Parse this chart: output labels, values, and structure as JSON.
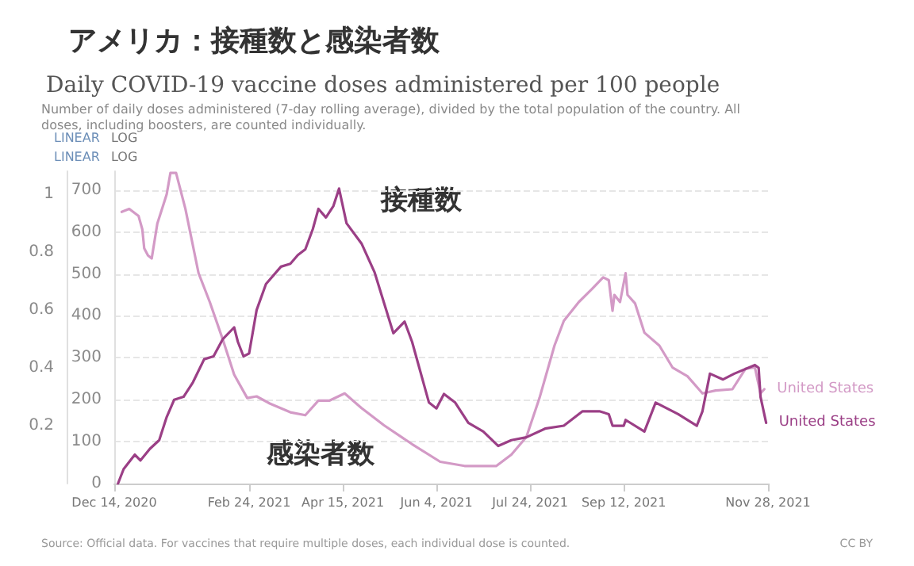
{
  "chart_data": {
    "type": "line",
    "title": "アメリカ：接種数と感染者数",
    "subtitle": "Daily COVID-19 vaccine doses administered per 100 people",
    "annotations": [
      "Number of daily doses administered (7-day rolling average), divided by the total population of the country. All doses, including boosters, are counted individually.",
      "LINEAR",
      "LOG",
      "LINEAR",
      "LOG",
      "Source: Official data. For vaccines that require multiple doses, each individual dose is counted.",
      "CC BY",
      "接種数",
      "感染者数"
    ],
    "series": [
      {
        "name": "United States",
        "color": "#d39ac6",
        "x": [
          "2020-12-18",
          "2020-12-22",
          "2020-12-27",
          "2020-12-29",
          "2020-12-30",
          "2021-01-01",
          "2021-01-03",
          "2021-01-06",
          "2021-01-11",
          "2021-01-13",
          "2021-01-16",
          "2021-01-21",
          "2021-01-28",
          "2021-02-03",
          "2021-02-10",
          "2021-02-16",
          "2021-02-23",
          "2021-02-28",
          "2021-03-07",
          "2021-03-18",
          "2021-03-26",
          "2021-04-02",
          "2021-04-08",
          "2021-04-16",
          "2021-04-25",
          "2021-05-07",
          "2021-05-22",
          "2021-06-06",
          "2021-06-19",
          "2021-07-06",
          "2021-07-14",
          "2021-07-22",
          "2021-07-29",
          "2021-08-06",
          "2021-08-11",
          "2021-08-19",
          "2021-08-26",
          "2021-09-01",
          "2021-09-04",
          "2021-09-06",
          "2021-09-07",
          "2021-09-10",
          "2021-09-13",
          "2021-09-14",
          "2021-09-18",
          "2021-09-23",
          "2021-10-01",
          "2021-10-08",
          "2021-10-16",
          "2021-10-24",
          "2021-10-31",
          "2021-11-09",
          "2021-11-16",
          "2021-11-21",
          "2021-11-24",
          "2021-11-26"
        ],
        "values": [
          648,
          655,
          638,
          606,
          561,
          544,
          537,
          620,
          690,
          741,
          741,
          655,
          502,
          433,
          343,
          260,
          204,
          208,
          191,
          170,
          163,
          198,
          198,
          215,
          180,
          139,
          94,
          52,
          42,
          42,
          69,
          111,
          204,
          329,
          388,
          433,
          464,
          492,
          485,
          412,
          450,
          433,
          502,
          450,
          430,
          360,
          329,
          277,
          256,
          215,
          222,
          225,
          274,
          277,
          215,
          225
        ]
      },
      {
        "name": "United States",
        "color": "#9b3f86",
        "axis": "y2",
        "x": [
          "2020-12-16",
          "2020-12-19",
          "2020-12-25",
          "2020-12-28",
          "2021-01-02",
          "2021-01-07",
          "2021-01-11",
          "2021-01-15",
          "2021-01-20",
          "2021-01-25",
          "2021-01-31",
          "2021-02-05",
          "2021-02-10",
          "2021-02-16",
          "2021-02-18",
          "2021-02-21",
          "2021-02-24",
          "2021-02-28",
          "2021-03-05",
          "2021-03-13",
          "2021-03-18",
          "2021-03-22",
          "2021-03-26",
          "2021-03-30",
          "2021-04-02",
          "2021-04-06",
          "2021-04-10",
          "2021-04-13",
          "2021-04-17",
          "2021-04-25",
          "2021-05-02",
          "2021-05-12",
          "2021-05-18",
          "2021-05-22",
          "2021-05-31",
          "2021-06-04",
          "2021-06-08",
          "2021-06-14",
          "2021-06-21",
          "2021-06-29",
          "2021-07-07",
          "2021-07-14",
          "2021-07-22",
          "2021-08-01",
          "2021-08-11",
          "2021-08-21",
          "2021-08-30",
          "2021-09-04",
          "2021-09-06",
          "2021-09-12",
          "2021-09-13",
          "2021-09-23",
          "2021-09-29",
          "2021-10-11",
          "2021-10-21",
          "2021-10-24",
          "2021-10-28",
          "2021-11-04",
          "2021-11-10",
          "2021-11-21",
          "2021-11-23",
          "2021-11-24",
          "2021-11-27"
        ],
        "values": [
          0,
          0.05,
          0.1,
          0.08,
          0.12,
          0.15,
          0.23,
          0.29,
          0.3,
          0.35,
          0.43,
          0.44,
          0.5,
          0.54,
          0.49,
          0.44,
          0.45,
          0.6,
          0.69,
          0.75,
          0.76,
          0.79,
          0.81,
          0.88,
          0.95,
          0.92,
          0.96,
          1.02,
          0.9,
          0.83,
          0.73,
          0.52,
          0.56,
          0.49,
          0.28,
          0.26,
          0.31,
          0.28,
          0.21,
          0.18,
          0.13,
          0.15,
          0.16,
          0.19,
          0.2,
          0.25,
          0.25,
          0.24,
          0.2,
          0.2,
          0.22,
          0.18,
          0.28,
          0.24,
          0.2,
          0.25,
          0.38,
          0.36,
          0.38,
          0.41,
          0.4,
          0.3,
          0.21
        ]
      }
    ],
    "xlim": [
      "2020-12-14",
      "2021-11-28"
    ],
    "xticks": [
      {
        "value": "2020-12-14",
        "label": "Dec 14, 2020"
      },
      {
        "value": "2021-02-24",
        "label": "Feb 24, 2021"
      },
      {
        "value": "2021-04-15",
        "label": "Apr 15, 2021"
      },
      {
        "value": "2021-06-04",
        "label": "Jun 4, 2021"
      },
      {
        "value": "2021-07-24",
        "label": "Jul 24, 2021"
      },
      {
        "value": "2021-09-12",
        "label": "Sep 12, 2021"
      },
      {
        "value": "2021-11-28",
        "label": "Nov 28, 2021"
      }
    ],
    "ylim": [
      0,
      745
    ],
    "yticks": [
      0,
      100,
      200,
      300,
      400,
      500,
      600,
      700
    ],
    "y2lim": [
      0,
      1.08
    ],
    "y2ticks": [
      0.2,
      0.4,
      0.6,
      0.8,
      1
    ],
    "grid": "y",
    "legend": false
  }
}
